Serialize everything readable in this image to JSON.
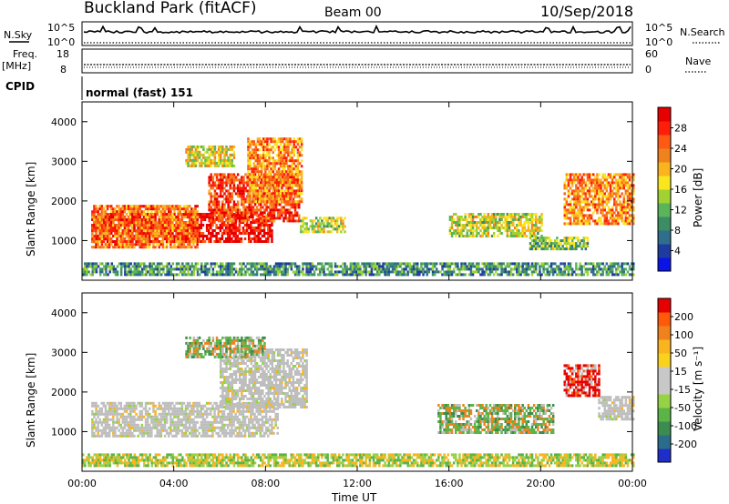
{
  "header": {
    "site": "Buckland Park (fitACF)",
    "beam": "Beam 00",
    "date": "10/Sep/2018"
  },
  "status_panels": {
    "nsky_label": "N.Sky",
    "nsky_ticks": [
      "10^5",
      "10^0"
    ],
    "nsearch_label": "N.Search",
    "nsearch_ticks": [
      "10^5",
      "10^0"
    ],
    "freq_label": "Freq.",
    "freq_unit": "[MHz]",
    "freq_ticks": [
      "18",
      "8"
    ],
    "nave_label": "Nave",
    "nave_ticks": [
      "60",
      "0"
    ],
    "cpid_label": "CPID",
    "cpid_value": "normal (fast) 151"
  },
  "chart_data": [
    {
      "type": "heatmap",
      "name": "power",
      "ylabel": "Slant Range [km]",
      "ylim": [
        0,
        4500
      ],
      "yticks": [
        "4000",
        "3000",
        "2000",
        "1000"
      ],
      "x_range_hours": [
        0,
        24
      ],
      "colorbar_label": "Power [dB]",
      "colorbar_ticks": [
        "28",
        "24",
        "20",
        "16",
        "12",
        "8",
        "4"
      ],
      "colorbar_colors": [
        "#0a14e6",
        "#1e3ca0",
        "#2f6e8c",
        "#3c8c64",
        "#5ab45a",
        "#a0d232",
        "#fae61e",
        "#fab41e",
        "#f0821e",
        "#ff5a14",
        "#ff1e0a",
        "#e60000"
      ],
      "regions": [
        {
          "t0": 0.4,
          "t1": 8.3,
          "r0": 1000,
          "r1": 1700,
          "level": 0.95
        },
        {
          "t0": 0.4,
          "t1": 5.0,
          "r0": 800,
          "r1": 1900,
          "level": 0.75
        },
        {
          "t0": 5.5,
          "t1": 9.5,
          "r0": 1500,
          "r1": 2700,
          "level": 0.85
        },
        {
          "t0": 7.2,
          "t1": 9.6,
          "r0": 2000,
          "r1": 3600,
          "level": 0.7
        },
        {
          "t0": 4.5,
          "t1": 6.6,
          "r0": 2900,
          "r1": 3400,
          "level": 0.55
        },
        {
          "t0": 9.5,
          "t1": 11.5,
          "r0": 1250,
          "r1": 1600,
          "level": 0.5
        },
        {
          "t0": 16.0,
          "t1": 20.0,
          "r0": 1100,
          "r1": 1700,
          "level": 0.5
        },
        {
          "t0": 19.5,
          "t1": 22.0,
          "r0": 800,
          "r1": 1100,
          "level": 0.4
        },
        {
          "t0": 21.0,
          "t1": 24.0,
          "r0": 1400,
          "r1": 2700,
          "level": 0.7
        },
        {
          "t0": 0.0,
          "t1": 24.0,
          "r0": 150,
          "r1": 450,
          "level": 0.3
        }
      ]
    },
    {
      "type": "heatmap",
      "name": "velocity",
      "ylabel": "Slant Range [km]",
      "ylim": [
        0,
        4500
      ],
      "yticks": [
        "4000",
        "3000",
        "2000",
        "1000"
      ],
      "x_range_hours": [
        0,
        24
      ],
      "xticks": [
        "00:00",
        "04:00",
        "08:00",
        "12:00",
        "16:00",
        "20:00",
        "00:00"
      ],
      "xlabel": "Time UT",
      "colorbar_label": "Velocity [m s⁻¹]",
      "colorbar_ticks": [
        "200",
        "100",
        "50",
        "15",
        "-15",
        "-50",
        "-100",
        "-200"
      ],
      "colorbar_colors": [
        "#1e2ec8",
        "#2a6c8c",
        "#3c8c50",
        "#5ab446",
        "#96d246",
        "#c8c8c8",
        "#c8c8c8",
        "#fad21e",
        "#fab41e",
        "#f0821e",
        "#ff5a0a",
        "#e60000"
      ],
      "regions": [
        {
          "t0": 0.4,
          "t1": 8.5,
          "r0": 900,
          "r1": 1750,
          "kind": "ground"
        },
        {
          "t0": 6.0,
          "t1": 9.8,
          "r0": 1600,
          "r1": 3100,
          "kind": "ground"
        },
        {
          "t0": 4.5,
          "t1": 8.0,
          "r0": 2900,
          "r1": 3400,
          "kind": "mixed"
        },
        {
          "t0": 15.5,
          "t1": 20.5,
          "r0": 1000,
          "r1": 1700,
          "kind": "mixed"
        },
        {
          "t0": 21.0,
          "t1": 22.5,
          "r0": 1900,
          "r1": 2700,
          "kind": "red"
        },
        {
          "t0": 22.5,
          "t1": 24.0,
          "r0": 1300,
          "r1": 1900,
          "kind": "ground"
        },
        {
          "t0": 0.0,
          "t1": 24.0,
          "r0": 150,
          "r1": 450,
          "kind": "low"
        }
      ]
    }
  ]
}
